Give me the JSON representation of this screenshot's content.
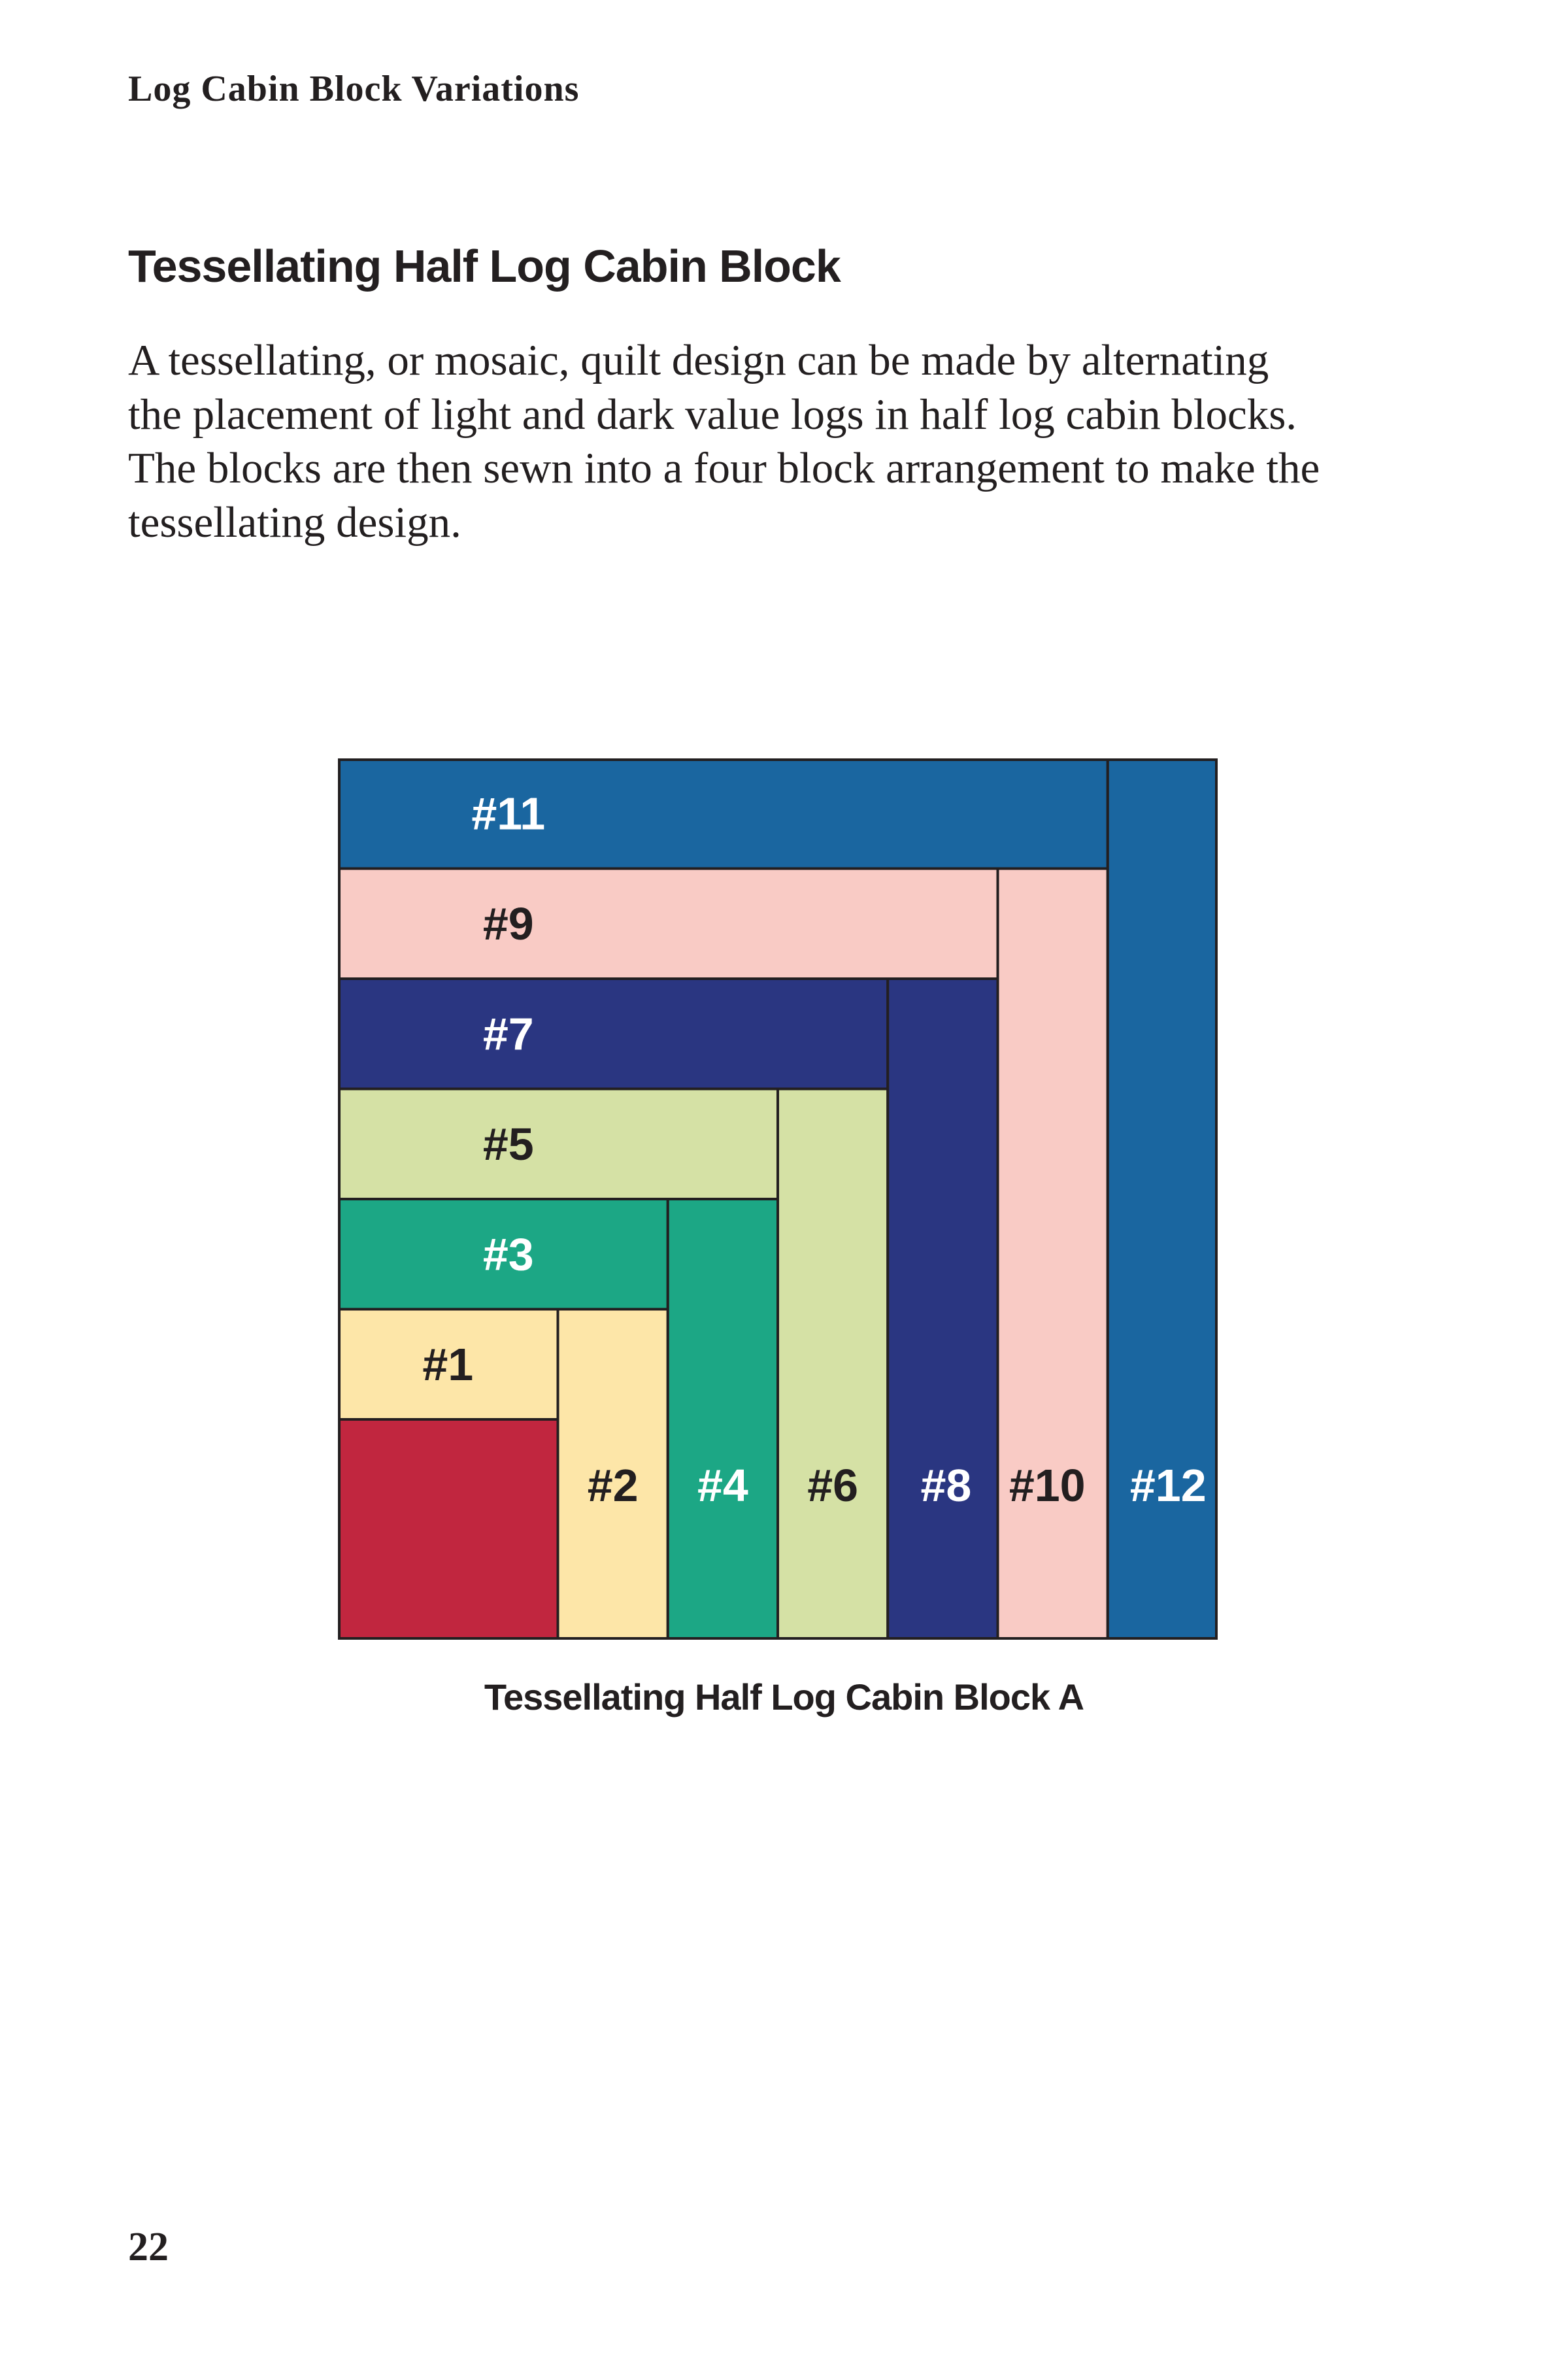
{
  "running_head": "Log Cabin Block Variations",
  "section_title": "Tessellating Half Log Cabin Block",
  "body_lines": [
    "A tessellating, or mosaic, quilt design can be made by alternating",
    "the placement of light and dark value logs in half log cabin blocks.",
    "The blocks are then sewn into a four block arrangement to make the",
    "tessellating design."
  ],
  "figure": {
    "logs": [
      {
        "id": "center",
        "label": "",
        "color": "#c1263f"
      },
      {
        "id": "1",
        "label": "#1",
        "color": "#fde6a8",
        "text_color": "#231f20"
      },
      {
        "id": "2",
        "label": "#2",
        "color": "#fde6a8",
        "text_color": "#231f20"
      },
      {
        "id": "3",
        "label": "#3",
        "color": "#1ca785",
        "text_color": "#ffffff"
      },
      {
        "id": "4",
        "label": "#4",
        "color": "#1ca785",
        "text_color": "#ffffff"
      },
      {
        "id": "5",
        "label": "#5",
        "color": "#d5e1a5",
        "text_color": "#231f20"
      },
      {
        "id": "6",
        "label": "#6",
        "color": "#d5e1a5",
        "text_color": "#231f20"
      },
      {
        "id": "7",
        "label": "#7",
        "color": "#2a3681",
        "text_color": "#ffffff"
      },
      {
        "id": "8",
        "label": "#8",
        "color": "#2a3681",
        "text_color": "#ffffff"
      },
      {
        "id": "9",
        "label": "#9",
        "color": "#f9cbc5",
        "text_color": "#231f20"
      },
      {
        "id": "10",
        "label": "#10",
        "color": "#f9cbc5",
        "text_color": "#231f20"
      },
      {
        "id": "11",
        "label": "#11",
        "color": "#1a66a0",
        "text_color": "#ffffff"
      },
      {
        "id": "12",
        "label": "#12",
        "color": "#1a66a0",
        "text_color": "#ffffff"
      }
    ],
    "caption": "Tessellating Half Log Cabin Block A"
  },
  "page_number": "22"
}
